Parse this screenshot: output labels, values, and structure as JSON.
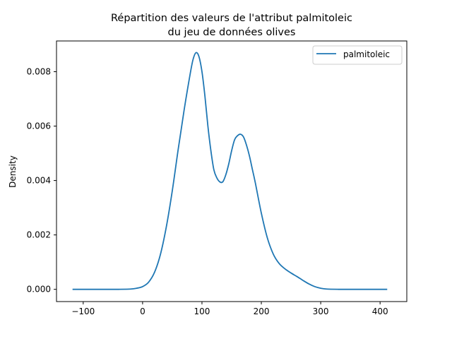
{
  "chart_data": {
    "type": "line",
    "title_lines": [
      "Répartition des valeurs de l'attribut palmitoleic",
      "du jeu de données olives"
    ],
    "xlabel": "",
    "ylabel": "Density",
    "xlim": [
      -145,
      445
    ],
    "ylim": [
      -0.00045,
      0.00913
    ],
    "x_ticks": [
      -100,
      0,
      100,
      200,
      300,
      400
    ],
    "x_tick_labels": [
      "−100",
      "0",
      "100",
      "200",
      "300",
      "400"
    ],
    "y_ticks": [
      0,
      0.002,
      0.004,
      0.006,
      0.008
    ],
    "y_tick_labels": [
      "0.000",
      "0.002",
      "0.004",
      "0.006",
      "0.008"
    ],
    "legend": {
      "position": "top-right",
      "entries": [
        "palmitoleic"
      ]
    },
    "grid": false,
    "series": [
      {
        "name": "palmitoleic",
        "color": "#1f77b4",
        "x": [
          -118,
          -100,
          -80,
          -60,
          -40,
          -20,
          -10,
          0,
          10,
          20,
          30,
          40,
          50,
          60,
          70,
          80,
          85,
          90,
          95,
          100,
          105,
          110,
          115,
          120,
          125,
          130,
          135,
          140,
          145,
          150,
          155,
          160,
          165,
          170,
          175,
          180,
          185,
          190,
          200,
          210,
          220,
          230,
          240,
          250,
          260,
          270,
          280,
          290,
          300,
          310,
          330,
          350,
          380,
          412
        ],
        "y": [
          0.0,
          0.0,
          0.0,
          0.0,
          0.0,
          1e-05,
          4e-05,
          0.0001,
          0.00026,
          0.00062,
          0.00128,
          0.0023,
          0.00362,
          0.00515,
          0.0066,
          0.0079,
          0.00845,
          0.0087,
          0.00855,
          0.008,
          0.0071,
          0.006,
          0.0051,
          0.0044,
          0.0041,
          0.00395,
          0.00395,
          0.0042,
          0.0046,
          0.0051,
          0.0055,
          0.00565,
          0.0057,
          0.0056,
          0.0053,
          0.0049,
          0.0044,
          0.0039,
          0.0028,
          0.0019,
          0.0013,
          0.00095,
          0.00075,
          0.0006,
          0.00047,
          0.00033,
          0.0002,
          0.0001,
          4e-05,
          1e-05,
          0.0,
          0.0,
          0.0,
          0.0
        ]
      }
    ]
  }
}
